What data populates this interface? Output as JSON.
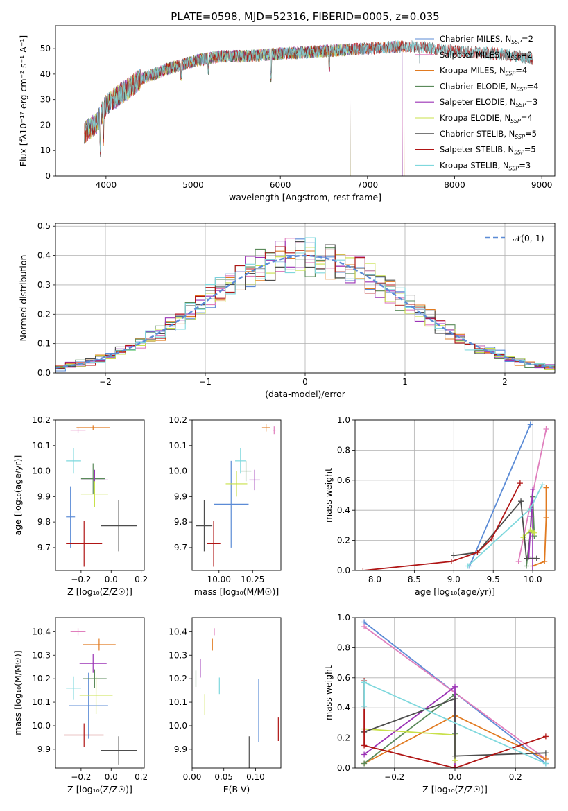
{
  "figure": {
    "title": "PLATE=0598, MJD=52316, FIBERID=0005, z=0.035"
  },
  "colors": {
    "Chabrier MILES": "#5b8bd6",
    "Salpeter MILES": "#e07fbd",
    "Kroupa MILES": "#e17a20",
    "Chabrier ELODIE": "#5a8a5a",
    "Salpeter ELODIE": "#9b33b5",
    "Kroupa ELODIE": "#c8e04a",
    "Chabrier STELIB": "#4d4d4d",
    "Salpeter STELIB": "#b01515",
    "Kroupa STELIB": "#7fd8dd"
  },
  "chart_data": [
    {
      "id": "spectrum",
      "type": "line",
      "xlabel": "wavelength [Angstrom, rest frame]",
      "ylabel": "Flux [fλ10⁻¹⁷ erg cm⁻² s⁻¹ A⁻¹]",
      "xlim": [
        3420,
        9150
      ],
      "ylim": [
        0,
        59
      ],
      "xticks": [
        4000,
        5000,
        6000,
        7000,
        8000,
        9000
      ],
      "yticks": [
        0,
        10,
        20,
        30,
        40,
        50
      ],
      "legend_position": "right",
      "continuum_x": [
        3750,
        3900,
        4000,
        4200,
        4400,
        4700,
        5000,
        5300,
        5600,
        6000,
        6500,
        7000,
        7500,
        8000,
        8500,
        8900
      ],
      "continuum_y": [
        17,
        21,
        28,
        33,
        38,
        42,
        45,
        47,
        47,
        48,
        49,
        50,
        51,
        49,
        48,
        46
      ],
      "series": [
        {
          "name": "Chabrier MILES, N_SSP=2",
          "label_main": "Chabrier MILES, N",
          "label_sub": "SSP",
          "label_tail": "=2",
          "x_end": 7400
        },
        {
          "name": "Salpeter MILES, N_SSP=2",
          "label_main": "Salpeter MILES, N",
          "label_sub": "SSP",
          "label_tail": "=2",
          "x_end": 7400
        },
        {
          "name": "Kroupa MILES, N_SSP=4",
          "label_main": "Kroupa MILES, N",
          "label_sub": "SSP",
          "label_tail": "=4",
          "x_end": 7420
        },
        {
          "name": "Chabrier ELODIE, N_SSP=4",
          "label_main": "Chabrier ELODIE, N",
          "label_sub": "SSP",
          "label_tail": "=4",
          "x_end": 6800
        },
        {
          "name": "Salpeter ELODIE, N_SSP=3",
          "label_main": "Salpeter ELODIE, N",
          "label_sub": "SSP",
          "label_tail": "=3",
          "x_end": 6800
        },
        {
          "name": "Kroupa ELODIE, N_SSP=4",
          "label_main": "Kroupa ELODIE, N",
          "label_sub": "SSP",
          "label_tail": "=4",
          "x_end": 6800
        },
        {
          "name": "Chabrier STELIB, N_SSP=5",
          "label_main": "Chabrier STELIB, N",
          "label_sub": "SSP",
          "label_tail": "=5",
          "x_end": 8900
        },
        {
          "name": "Salpeter STELIB, N_SSP=5",
          "label_main": "Salpeter STELIB, N",
          "label_sub": "SSP",
          "label_tail": "=5",
          "x_end": 8900
        },
        {
          "name": "Kroupa STELIB, N_SSP=3",
          "label_main": "Kroupa STELIB, N",
          "label_sub": "SSP",
          "label_tail": "=3",
          "x_end": 8900
        }
      ]
    },
    {
      "id": "residuals",
      "type": "histogram",
      "xlabel": "(data-model)/error",
      "ylabel": "Normed distribution",
      "xlim": [
        -2.5,
        2.5
      ],
      "ylim": [
        0,
        0.51
      ],
      "xticks": [
        -2,
        -1,
        0,
        1,
        2
      ],
      "yticks": [
        0.0,
        0.1,
        0.2,
        0.3,
        0.4,
        0.5
      ],
      "bin_width": 0.1,
      "bin_start": -2.5,
      "reference_label": "𝒩(0, 1)",
      "grid": true
    },
    {
      "id": "age_vs_Z",
      "type": "errorbar",
      "xlabel": "Z [log₁₀(Z/Z☉)]",
      "ylabel": "age  [log₁₀(age/yr)]",
      "xlim": [
        -0.37,
        0.22
      ],
      "ylim": [
        9.61,
        10.2
      ],
      "xticks": [
        -0.2,
        0.0,
        0.2
      ],
      "yticks": [
        9.7,
        9.8,
        9.9,
        10.0,
        10.1,
        10.2
      ],
      "points": [
        {
          "series": "Chabrier MILES",
          "x": -0.27,
          "xerr": 0.03,
          "y": 9.82,
          "yerr": 0.12
        },
        {
          "series": "Salpeter MILES",
          "x": -0.22,
          "xerr": 0.05,
          "y": 10.16,
          "yerr": 0.01
        },
        {
          "series": "Kroupa MILES",
          "x": -0.12,
          "xerr": 0.11,
          "y": 10.17,
          "yerr": 0.01
        },
        {
          "series": "Chabrier ELODIE",
          "x": -0.12,
          "xerr": 0.08,
          "y": 9.97,
          "yerr": 0.06
        },
        {
          "series": "Salpeter ELODIE",
          "x": -0.11,
          "xerr": 0.09,
          "y": 9.965,
          "yerr": 0.04
        },
        {
          "series": "Kroupa ELODIE",
          "x": -0.11,
          "xerr": 0.09,
          "y": 9.91,
          "yerr": 0.05
        },
        {
          "series": "Chabrier STELIB",
          "x": 0.05,
          "xerr": 0.12,
          "y": 9.785,
          "yerr": 0.1
        },
        {
          "series": "Salpeter STELIB",
          "x": -0.18,
          "xerr": 0.12,
          "y": 9.715,
          "yerr": 0.09
        },
        {
          "series": "Kroupa STELIB",
          "x": -0.25,
          "xerr": 0.05,
          "y": 10.04,
          "yerr": 0.05
        }
      ]
    },
    {
      "id": "age_vs_mass",
      "type": "errorbar",
      "xlabel": "mass [log₁₀(M/M☉)]",
      "ylabel": "",
      "xlim": [
        9.8,
        10.46
      ],
      "ylim": [
        9.61,
        10.2
      ],
      "xticks": [
        10.0,
        10.25
      ],
      "xtick_labels": [
        "10.00",
        "10.25"
      ],
      "yticks": [
        9.7,
        9.8,
        9.9,
        10.0,
        10.1,
        10.2
      ],
      "points": [
        {
          "series": "Chabrier MILES",
          "x": 10.09,
          "xerr": 0.13,
          "y": 9.87,
          "yerr": 0.17
        },
        {
          "series": "Salpeter MILES",
          "x": 10.41,
          "xerr": 0.01,
          "y": 10.16,
          "yerr": 0.015
        },
        {
          "series": "Kroupa MILES",
          "x": 10.35,
          "xerr": 0.03,
          "y": 10.17,
          "yerr": 0.015
        },
        {
          "series": "Chabrier ELODIE",
          "x": 10.2,
          "xerr": 0.04,
          "y": 10.0,
          "yerr": 0.04
        },
        {
          "series": "Salpeter ELODIE",
          "x": 10.265,
          "xerr": 0.04,
          "y": 9.965,
          "yerr": 0.04
        },
        {
          "series": "Kroupa ELODIE",
          "x": 10.13,
          "xerr": 0.08,
          "y": 9.95,
          "yerr": 0.05
        },
        {
          "series": "Chabrier STELIB",
          "x": 9.89,
          "xerr": 0.06,
          "y": 9.785,
          "yerr": 0.1
        },
        {
          "series": "Salpeter STELIB",
          "x": 9.96,
          "xerr": 0.05,
          "y": 9.715,
          "yerr": 0.09
        },
        {
          "series": "Kroupa STELIB",
          "x": 10.16,
          "xerr": 0.04,
          "y": 10.04,
          "yerr": 0.05
        }
      ]
    },
    {
      "id": "weight_vs_age",
      "type": "line",
      "xlabel": "age  [log₁₀(age/yr)]",
      "ylabel": "mass weight",
      "xlim": [
        7.75,
        10.28
      ],
      "ylim": [
        0,
        1
      ],
      "xticks": [
        8.0,
        8.5,
        9.0,
        9.5,
        10.0
      ],
      "yticks": [
        0.0,
        0.2,
        0.4,
        0.6,
        0.8,
        1.0
      ],
      "grid": true,
      "series": [
        {
          "name": "Chabrier MILES",
          "x": [
            9.2,
            9.97
          ],
          "y": [
            0.03,
            0.97
          ]
        },
        {
          "name": "Salpeter MILES",
          "x": [
            9.82,
            10.17
          ],
          "y": [
            0.06,
            0.94
          ]
        },
        {
          "name": "Kroupa MILES",
          "x": [
            10.0,
            10.15,
            10.17,
            10.17
          ],
          "y": [
            0.03,
            0.06,
            0.35,
            0.55
          ]
        },
        {
          "name": "Chabrier ELODIE",
          "x": [
            9.92,
            9.97,
            10.0,
            10.02
          ],
          "y": [
            0.03,
            0.25,
            0.49,
            0.23
          ]
        },
        {
          "name": "Salpeter ELODIE",
          "x": [
            9.95,
            9.98,
            10.0,
            10.0
          ],
          "y": [
            0.09,
            0.36,
            0.54,
            0.0
          ]
        },
        {
          "name": "Kroupa ELODIE",
          "x": [
            9.88,
            9.97,
            10.0,
            10.02
          ],
          "y": [
            0.22,
            0.27,
            0.26,
            0.25
          ]
        },
        {
          "name": "Chabrier STELIB",
          "x": [
            9.0,
            9.3,
            9.85,
            9.92,
            10.05
          ],
          "y": [
            0.1,
            0.12,
            0.46,
            0.08,
            0.08
          ]
        },
        {
          "name": "Salpeter STELIB",
          "x": [
            7.85,
            8.97,
            9.3,
            9.48,
            9.84
          ],
          "y": [
            0.0,
            0.06,
            0.12,
            0.21,
            0.58
          ]
        },
        {
          "name": "Kroupa STELIB",
          "x": [
            9.18,
            9.97,
            10.12
          ],
          "y": [
            0.03,
            0.41,
            0.57
          ]
        }
      ]
    },
    {
      "id": "mass_vs_Z",
      "type": "errorbar",
      "xlabel": "Z [log₁₀(Z/Z☉)]",
      "ylabel": "mass [log₁₀(M/M☉)]",
      "xlim": [
        -0.37,
        0.22
      ],
      "ylim": [
        9.82,
        10.46
      ],
      "xticks": [
        -0.2,
        0.0,
        0.2
      ],
      "yticks": [
        9.9,
        10.0,
        10.1,
        10.2,
        10.3,
        10.4
      ],
      "points": [
        {
          "series": "Chabrier MILES",
          "x": -0.15,
          "xerr": 0.13,
          "y": 10.085,
          "yerr": 0.14
        },
        {
          "series": "Salpeter MILES",
          "x": -0.22,
          "xerr": 0.05,
          "y": 10.4,
          "yerr": 0.015
        },
        {
          "series": "Kroupa MILES",
          "x": -0.08,
          "xerr": 0.11,
          "y": 10.345,
          "yerr": 0.025
        },
        {
          "series": "Chabrier ELODIE",
          "x": -0.11,
          "xerr": 0.08,
          "y": 10.2,
          "yerr": 0.04
        },
        {
          "series": "Salpeter ELODIE",
          "x": -0.12,
          "xerr": 0.09,
          "y": 10.265,
          "yerr": 0.04
        },
        {
          "series": "Kroupa ELODIE",
          "x": -0.1,
          "xerr": 0.11,
          "y": 10.13,
          "yerr": 0.08
        },
        {
          "series": "Chabrier STELIB",
          "x": 0.05,
          "xerr": 0.12,
          "y": 9.895,
          "yerr": 0.06
        },
        {
          "series": "Salpeter STELIB",
          "x": -0.18,
          "xerr": 0.13,
          "y": 9.96,
          "yerr": 0.05
        },
        {
          "series": "Kroupa STELIB",
          "x": -0.25,
          "xerr": 0.05,
          "y": 10.16,
          "yerr": 0.05
        }
      ]
    },
    {
      "id": "mass_vs_ebv",
      "type": "errorbar",
      "xlabel": "E(B-V)",
      "ylabel": "",
      "xlim": [
        0.0,
        0.14
      ],
      "ylim": [
        9.82,
        10.46
      ],
      "xticks": [
        0.0,
        0.05,
        0.1
      ],
      "xtick_labels": [
        "0.00",
        "0.05",
        "0.10"
      ],
      "yticks": [
        9.9,
        10.0,
        10.1,
        10.2,
        10.3,
        10.4
      ],
      "points": [
        {
          "series": "Chabrier MILES",
          "x": 0.105,
          "xerr": 0.0,
          "y": 10.065,
          "yerr": 0.135
        },
        {
          "series": "Salpeter MILES",
          "x": 0.035,
          "xerr": 0.0,
          "y": 10.4,
          "yerr": 0.015
        },
        {
          "series": "Kroupa MILES",
          "x": 0.032,
          "xerr": 0.0,
          "y": 10.345,
          "yerr": 0.025
        },
        {
          "series": "Chabrier ELODIE",
          "x": 0.006,
          "xerr": 0.0,
          "y": 10.2,
          "yerr": 0.035
        },
        {
          "series": "Salpeter ELODIE",
          "x": 0.013,
          "xerr": 0.0,
          "y": 10.245,
          "yerr": 0.04
        },
        {
          "series": "Kroupa ELODIE",
          "x": 0.02,
          "xerr": 0.0,
          "y": 10.09,
          "yerr": 0.045
        },
        {
          "series": "Chabrier STELIB",
          "x": 0.09,
          "xerr": 0.0,
          "y": 9.88,
          "yerr": 0.075
        },
        {
          "series": "Salpeter STELIB",
          "x": 0.136,
          "xerr": 0.0,
          "y": 9.985,
          "yerr": 0.05
        },
        {
          "series": "Kroupa STELIB",
          "x": 0.043,
          "xerr": 0.0,
          "y": 10.17,
          "yerr": 0.035
        }
      ]
    },
    {
      "id": "weight_vs_Z",
      "type": "line",
      "xlabel": "Z [log₁₀(Z/Z☉)]",
      "ylabel": "mass weight",
      "xlim": [
        -0.33,
        0.33
      ],
      "ylim": [
        0,
        1
      ],
      "xticks": [
        -0.2,
        0.0,
        0.2
      ],
      "yticks": [
        0.0,
        0.2,
        0.4,
        0.6,
        0.8,
        1.0
      ],
      "grid": true,
      "series": [
        {
          "name": "Chabrier MILES",
          "x": [
            -0.3,
            0.3
          ],
          "y": [
            0.97,
            0.03
          ]
        },
        {
          "name": "Salpeter MILES",
          "x": [
            -0.3,
            0.3
          ],
          "y": [
            0.94,
            0.06
          ]
        },
        {
          "name": "Kroupa MILES",
          "x": [
            -0.3,
            0.0,
            0.3
          ],
          "y": [
            0.03,
            0.35,
            0.06
          ]
        },
        {
          "name": "Chabrier ELODIE",
          "x": [
            -0.3,
            0.0,
            0.0
          ],
          "y": [
            0.03,
            0.49,
            0.23
          ]
        },
        {
          "name": "Salpeter ELODIE",
          "x": [
            -0.3,
            0.0,
            0.0
          ],
          "y": [
            0.09,
            0.54,
            0.0
          ]
        },
        {
          "name": "Kroupa ELODIE",
          "x": [
            -0.3,
            0.0,
            0.0
          ],
          "y": [
            0.26,
            0.22,
            0.05
          ]
        },
        {
          "name": "Chabrier STELIB",
          "x": [
            -0.3,
            -0.3,
            0.0,
            0.0,
            0.3
          ],
          "y": [
            0.24,
            0.24,
            0.46,
            0.08,
            0.1
          ]
        },
        {
          "name": "Salpeter STELIB",
          "x": [
            -0.3,
            -0.3,
            0.0,
            0.3
          ],
          "y": [
            0.58,
            0.15,
            0.0,
            0.21
          ]
        },
        {
          "name": "Kroupa STELIB",
          "x": [
            -0.3,
            -0.3,
            0.3
          ],
          "y": [
            0.41,
            0.57,
            0.03
          ]
        }
      ]
    }
  ]
}
